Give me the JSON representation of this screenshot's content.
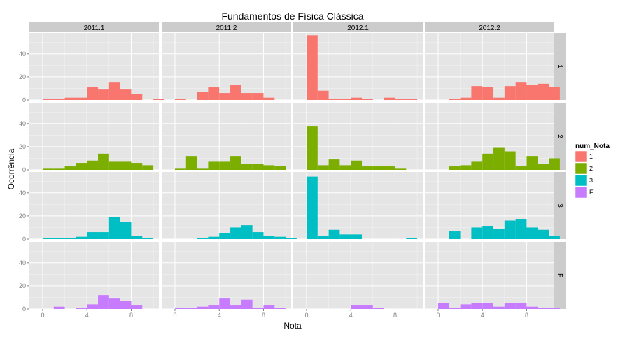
{
  "chart_data": {
    "type": "bar",
    "title": "Fundamentos de Física Clássica",
    "xlabel": "Nota",
    "ylabel": "Ocorrência",
    "column_facets": [
      "2011.1",
      "2011.2",
      "2012.1",
      "2012.2"
    ],
    "row_facets": [
      "1",
      "2",
      "3",
      "F"
    ],
    "x_ticks": [
      0,
      4,
      8
    ],
    "y_ticks": [
      0,
      20,
      40
    ],
    "xlim": [
      -1.2,
      10.5
    ],
    "ylim": [
      0,
      58
    ],
    "bin_width": 1,
    "bins": [
      0,
      1,
      2,
      3,
      4,
      5,
      6,
      7,
      8,
      9,
      10
    ],
    "legend": {
      "title": "num_Nota",
      "position": "right",
      "items": [
        {
          "label": "1",
          "color": "#F8766D"
        },
        {
          "label": "2",
          "color": "#7CAE00"
        },
        {
          "label": "3",
          "color": "#00BFC4"
        },
        {
          "label": "F",
          "color": "#C77CFF"
        }
      ]
    },
    "panels": [
      {
        "col": "2011.1",
        "row": "1",
        "counts": [
          1,
          1,
          2,
          2,
          11,
          9,
          15,
          9,
          5,
          0,
          1
        ]
      },
      {
        "col": "2011.2",
        "row": "1",
        "counts": [
          1,
          0,
          7,
          11,
          6,
          13,
          6,
          6,
          2,
          0,
          0
        ]
      },
      {
        "col": "2012.1",
        "row": "1",
        "counts": [
          56,
          8,
          1,
          1,
          2,
          1,
          0,
          2,
          1,
          1,
          0
        ]
      },
      {
        "col": "2012.2",
        "row": "1",
        "counts": [
          0,
          1,
          2,
          12,
          11,
          2,
          12,
          15,
          13,
          14,
          11
        ]
      },
      {
        "col": "2011.1",
        "row": "2",
        "counts": [
          1,
          1,
          3,
          6,
          8,
          14,
          7,
          7,
          6,
          4,
          0
        ]
      },
      {
        "col": "2011.2",
        "row": "2",
        "counts": [
          1,
          12,
          1,
          7,
          7,
          12,
          5,
          5,
          4,
          3,
          0
        ]
      },
      {
        "col": "2012.1",
        "row": "2",
        "counts": [
          38,
          4,
          9,
          4,
          8,
          3,
          3,
          3,
          1,
          0,
          0
        ]
      },
      {
        "col": "2012.2",
        "row": "2",
        "counts": [
          0,
          3,
          4,
          7,
          14,
          19,
          16,
          3,
          12,
          5,
          10
        ]
      },
      {
        "col": "2011.1",
        "row": "3",
        "counts": [
          1,
          1,
          1,
          2,
          6,
          6,
          19,
          15,
          3,
          1,
          0
        ]
      },
      {
        "col": "2011.2",
        "row": "3",
        "counts": [
          0,
          0,
          1,
          2,
          5,
          10,
          12,
          6,
          3,
          2,
          1
        ]
      },
      {
        "col": "2012.1",
        "row": "3",
        "counts": [
          54,
          3,
          8,
          4,
          4,
          0,
          0,
          0,
          0,
          1,
          0
        ]
      },
      {
        "col": "2012.2",
        "row": "3",
        "counts": [
          0,
          7,
          0,
          10,
          11,
          9,
          16,
          17,
          10,
          8,
          3
        ]
      },
      {
        "col": "2011.1",
        "row": "F",
        "counts": [
          0,
          2,
          0,
          1,
          4,
          12,
          9,
          7,
          3,
          0,
          0
        ]
      },
      {
        "col": "2011.2",
        "row": "F",
        "counts": [
          1,
          1,
          2,
          3,
          9,
          3,
          8,
          1,
          3,
          1,
          0
        ]
      },
      {
        "col": "2012.1",
        "row": "F",
        "counts": [
          0,
          0,
          0,
          0,
          3,
          3,
          1,
          0,
          0,
          0,
          0
        ]
      },
      {
        "col": "2012.2",
        "row": "F",
        "counts": [
          5,
          1,
          4,
          5,
          5,
          2,
          5,
          5,
          2,
          1,
          1
        ]
      }
    ]
  }
}
